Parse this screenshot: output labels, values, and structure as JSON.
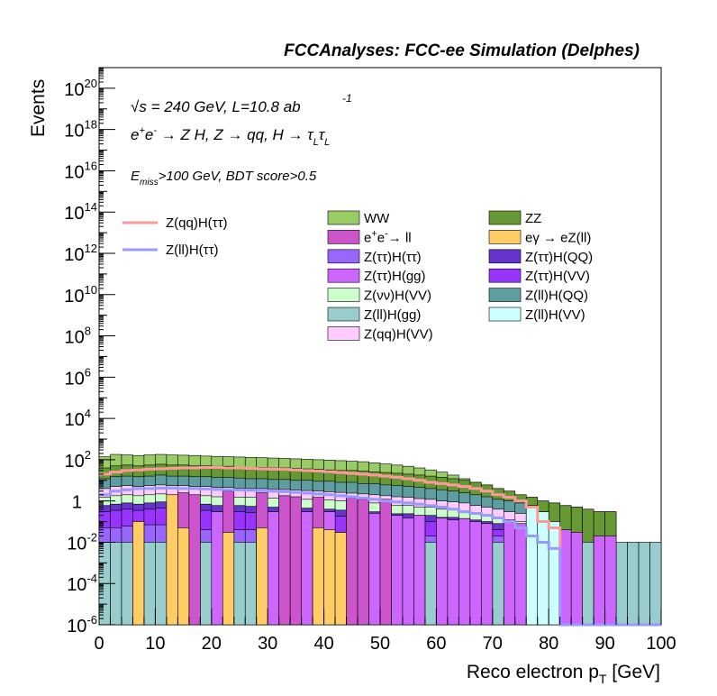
{
  "header": {
    "title": "FCCAnalyses: FCC-ee Simulation (Delphes)"
  },
  "annotations": {
    "line1_sqrt": "s",
    "line1_rest": " = 240 GeV, L=10.8 ab",
    "line1_sup": "-1",
    "line2": "e⁺e⁻ → Z H, Z → qq, H → τ_L τ_L",
    "line2_parts": {
      "a": "e",
      "a_sup": "+",
      "b": "e",
      "b_sup": "-",
      "c": " → Z H, Z  → qq, H  → τ",
      "c_sub": "L",
      "d": "τ",
      "d_sub": "L"
    },
    "line3_E": "E",
    "line3_sub": "miss",
    "line3_rest": ">100 GeV, BDT score>0.5"
  },
  "chart_data": {
    "type": "histogram",
    "title": "FCCAnalyses: FCC-ee Simulation (Delphes)",
    "xlabel_main": "Reco electron p",
    "xlabel_sub": "T",
    "xlabel_unit": " [GeV]",
    "ylabel": "Events",
    "xlim": [
      0,
      100
    ],
    "ylim": [
      1e-06,
      1e+21
    ],
    "yscale": "log",
    "bin_width": 2,
    "x_ticks": [
      "0",
      "10",
      "20",
      "30",
      "40",
      "50",
      "60",
      "70",
      "80",
      "90",
      "100"
    ],
    "y_ticks": [
      {
        "base": "10",
        "exp": "-6"
      },
      {
        "base": "10",
        "exp": "-4"
      },
      {
        "base": "10",
        "exp": "-2"
      },
      {
        "base": "1",
        "exp": ""
      },
      {
        "base": "10",
        "exp": "2"
      },
      {
        "base": "10",
        "exp": "4"
      },
      {
        "base": "10",
        "exp": "6"
      },
      {
        "base": "10",
        "exp": "8"
      },
      {
        "base": "10",
        "exp": "10"
      },
      {
        "base": "10",
        "exp": "12"
      },
      {
        "base": "10",
        "exp": "14"
      },
      {
        "base": "10",
        "exp": "16"
      },
      {
        "base": "10",
        "exp": "18"
      },
      {
        "base": "10",
        "exp": "20"
      }
    ],
    "stack_layers": [
      {
        "name": "Z(ll)H(gg)",
        "color": "#99cccc",
        "top": [
          0.01,
          0.01,
          0.01,
          0.01,
          0.01,
          0.01,
          0.01,
          0.01,
          0.01,
          0.01,
          0.01,
          0.01,
          0.01,
          0.01,
          0.01,
          0.01,
          0.01,
          0.01,
          0.01,
          0.01,
          0.01,
          0.01,
          0.01,
          0.01,
          0.01,
          0.01,
          0.01,
          0.01,
          0.01,
          0.01,
          0.01,
          0.01,
          0.01,
          0.01,
          0.01,
          0.01,
          0.01,
          0.01,
          0.01,
          0.01,
          0.01,
          0.01,
          0.01,
          0.01,
          0.01,
          0.01,
          0.01,
          0.01,
          0.01,
          0.01
        ]
      },
      {
        "name": "Z(ττ)H(ττ)",
        "color": "#9966ff",
        "top": [
          0.05,
          0.05,
          0.06,
          0.06,
          0.07,
          0.07,
          0.05,
          0.06,
          0.05,
          0.04,
          0.05,
          0.05,
          0.04,
          0.04,
          0.05,
          0.04,
          0.04,
          0.03,
          0.04,
          0.04,
          0.03,
          0.03,
          0.03,
          0.03,
          0.03,
          0.03,
          0.03,
          0.02,
          0.03,
          0.02,
          0.02,
          0.02,
          0.02,
          0.02,
          0.02,
          0.02,
          0.02,
          0.02,
          0.02,
          0.01,
          0.01,
          0.01,
          0.01,
          0,
          0,
          0,
          0,
          0,
          0,
          0
        ]
      },
      {
        "name": "Z(ττ)H(VV)",
        "color": "#9933ff",
        "top": [
          0.3,
          0.35,
          0.4,
          0.35,
          0.4,
          0.45,
          0.4,
          0.4,
          0.35,
          0.35,
          0.3,
          0.3,
          0.3,
          0.28,
          0.3,
          0.25,
          0.25,
          0.22,
          0.22,
          0.2,
          0.2,
          0.18,
          0.18,
          0.15,
          0.15,
          0.14,
          0.12,
          0.12,
          0.1,
          0.1,
          0.08,
          0.08,
          0.07,
          0.06,
          0.05,
          0.04,
          0.04,
          0.03,
          0.03,
          0.02,
          0,
          0,
          0,
          0,
          0,
          0,
          0,
          0,
          0,
          0
        ]
      },
      {
        "name": "Z(ττ)H(QQ)",
        "color": "#6633cc",
        "top": [
          0.6,
          0.7,
          0.8,
          0.7,
          0.8,
          0.9,
          0.8,
          0.8,
          0.7,
          0.7,
          0.6,
          0.6,
          0.6,
          0.55,
          0.6,
          0.5,
          0.5,
          0.45,
          0.45,
          0.4,
          0.4,
          0.36,
          0.36,
          0.3,
          0.3,
          0.28,
          0.24,
          0.24,
          0.2,
          0.2,
          0.16,
          0.16,
          0.14,
          0.12,
          0.1,
          0.08,
          0.08,
          0.06,
          0.05,
          0.03,
          0,
          0,
          0,
          0,
          0,
          0,
          0,
          0,
          0,
          0
        ]
      },
      {
        "name": "Z(νν)H(VV)",
        "color": "#ccffcc",
        "top": [
          1.5,
          1.8,
          2,
          1.8,
          2,
          2.2,
          2,
          2,
          1.8,
          1.8,
          1.6,
          1.6,
          1.5,
          1.5,
          1.5,
          1.4,
          1.3,
          1.2,
          1.2,
          1.1,
          1.1,
          1,
          0.9,
          0.8,
          0.8,
          0.7,
          0.6,
          0.6,
          0.5,
          0.5,
          0.4,
          0.4,
          0.3,
          0.25,
          0.2,
          0.15,
          0.12,
          0.1,
          0.08,
          0.05,
          0,
          0,
          0,
          0,
          0,
          0,
          0,
          0,
          0,
          0
        ]
      },
      {
        "name": "Z(qq)H(VV)",
        "color": "#ffccff",
        "top": [
          4,
          5,
          5.5,
          5,
          5.5,
          6,
          5.5,
          5.5,
          5,
          5,
          4.5,
          4.5,
          4.2,
          4,
          4,
          3.8,
          3.6,
          3.4,
          3.2,
          3,
          2.8,
          2.6,
          2.4,
          2.2,
          2,
          1.8,
          1.6,
          1.5,
          1.3,
          1.2,
          1,
          0.9,
          0.8,
          0.6,
          0.5,
          0.4,
          0.3,
          0.25,
          0.2,
          0.1,
          0,
          0,
          0,
          0,
          0,
          0,
          0,
          0,
          0,
          0
        ]
      },
      {
        "name": "Z(ll)H(QQ)",
        "color": "#5f9ea0",
        "top": [
          12,
          15,
          16,
          15,
          16,
          18,
          16,
          16,
          15,
          15,
          14,
          14,
          13,
          12,
          12,
          11,
          11,
          10,
          10,
          9,
          9,
          8,
          8,
          7,
          7,
          6,
          5.5,
          5,
          4.5,
          4,
          3.5,
          3,
          2.5,
          2,
          1.6,
          1.2,
          1,
          0.8,
          0.6,
          0.3,
          0,
          0,
          0,
          0,
          0,
          0,
          0,
          0,
          0,
          0
        ]
      },
      {
        "name": "ZZ",
        "color": "#669933",
        "top": [
          40,
          50,
          55,
          50,
          55,
          60,
          55,
          55,
          50,
          50,
          48,
          48,
          45,
          42,
          42,
          40,
          40,
          38,
          36,
          34,
          32,
          30,
          30,
          28,
          26,
          24,
          22,
          20,
          18,
          16,
          14,
          12,
          10,
          8,
          6,
          4,
          3,
          2,
          1.5,
          1,
          0.8,
          0.6,
          0.5,
          0.4,
          0.3,
          0.3,
          0,
          0,
          0,
          0
        ]
      },
      {
        "name": "WW",
        "color": "#99cc66",
        "top": [
          140,
          180,
          170,
          160,
          170,
          180,
          170,
          165,
          160,
          150,
          145,
          140,
          135,
          130,
          125,
          120,
          115,
          110,
          105,
          100,
          95,
          90,
          85,
          80,
          70,
          62,
          55,
          48,
          40,
          32,
          25,
          18,
          12,
          8,
          6,
          4,
          3,
          2,
          1.5,
          1,
          0.8,
          0.6,
          0.5,
          0.4,
          0.3,
          0.3,
          0,
          0,
          0,
          0
        ]
      }
    ],
    "sparse_fills": [
      {
        "name": "Z(ττ)H(gg)",
        "color": "#cc66ff",
        "bins": [
          6,
          7,
          10,
          14,
          15,
          17,
          18,
          20,
          22,
          23,
          24,
          26,
          27,
          28,
          30,
          31,
          32,
          33,
          34,
          36,
          37,
          38,
          39,
          40,
          41,
          42,
          44,
          45
        ],
        "top": [
          0.3,
          0.25,
          0.3,
          0.35,
          0.3,
          0.25,
          0.3,
          0.3,
          0.25,
          0.2,
          0.25,
          0.2,
          0.15,
          0.2,
          0.15,
          0.12,
          0.14,
          0.1,
          0.08,
          0.1,
          0.08,
          0.06,
          0.05,
          0.05,
          0.04,
          0.03,
          0.02,
          0.02
        ]
      },
      {
        "name": "e⁺e⁻→ ll",
        "color": "#cc55cc",
        "bins": [
          7,
          8,
          11,
          14,
          16,
          17,
          19,
          22,
          23,
          25
        ],
        "top": [
          2.5,
          2,
          3,
          2.5,
          1.8,
          1.6,
          1.5,
          1.4,
          1.2,
          1.2
        ]
      },
      {
        "name": "eγ → eZ(ll)",
        "color": "#ffcc66",
        "bins": [
          3,
          6,
          7,
          11,
          14,
          19,
          20,
          21,
          39
        ],
        "top": [
          0.1,
          2,
          0.05,
          0.03,
          0.05,
          0.05,
          0.04,
          0.03,
          0.05
        ]
      },
      {
        "name": "Z(ll)H(VV)",
        "color": "#ccffff",
        "bins": [
          38,
          39,
          40
        ],
        "top": [
          0.5,
          0.3,
          0.1
        ]
      }
    ],
    "overlay_lines": [
      {
        "name": "Z(qq)H(ττ)",
        "color": "#ff9999",
        "values": [
          20,
          25,
          30,
          32,
          35,
          36,
          38,
          40,
          40,
          42,
          42,
          40,
          40,
          38,
          36,
          35,
          34,
          32,
          30,
          28,
          26,
          24,
          22,
          20,
          18,
          16,
          14,
          12,
          10,
          8,
          7,
          6,
          5,
          4,
          3,
          2,
          1.5,
          1,
          0.5,
          0.1,
          0.05,
          0,
          0,
          0,
          0,
          0,
          0,
          0,
          0,
          0
        ]
      },
      {
        "name": "Z(ll)H(ττ)",
        "color": "#9999ff",
        "values": [
          2,
          3,
          3.5,
          4,
          4,
          4.2,
          4.2,
          4,
          4,
          3.8,
          3.6,
          3.5,
          3.4,
          3.3,
          3.2,
          3,
          2.8,
          2.6,
          2.4,
          2.2,
          2,
          1.8,
          1.6,
          1.4,
          1.2,
          1,
          0.9,
          0.8,
          0.7,
          0.6,
          0.5,
          0.4,
          0.3,
          0.25,
          0.2,
          0.15,
          0.1,
          0.05,
          0.02,
          0.01,
          0.005,
          0,
          0,
          0,
          0,
          0,
          0,
          0,
          0,
          0
        ]
      }
    ],
    "legend_lines": [
      {
        "label": "Z(qq)H(ττ)",
        "color": "#ff9999"
      },
      {
        "label": "Z(ll)H(ττ)",
        "color": "#9999ff"
      }
    ],
    "legend_boxes_col1": [
      {
        "label": "WW",
        "color": "#99cc66"
      },
      {
        "label_base": "e",
        "label_sup1": "+",
        "label_mid": "e",
        "label_sup2": "-",
        "label_end": "→ ll",
        "label": "e⁺e⁻→ ll",
        "color": "#cc55cc"
      },
      {
        "label": "Z(ττ)H(ττ)",
        "color": "#9966ff"
      },
      {
        "label": "Z(ττ)H(gg)",
        "color": "#cc66ff"
      },
      {
        "label": "Z(νν)H(VV)",
        "color": "#ccffcc"
      },
      {
        "label": "Z(ll)H(gg)",
        "color": "#99cccc"
      },
      {
        "label": "Z(qq)H(VV)",
        "color": "#ffccff"
      }
    ],
    "legend_boxes_col2": [
      {
        "label": "ZZ",
        "color": "#669933"
      },
      {
        "label": "eγ → eZ(ll)",
        "color": "#ffcc66"
      },
      {
        "label": "Z(ττ)H(QQ)",
        "color": "#6633cc"
      },
      {
        "label": "Z(ττ)H(VV)",
        "color": "#9933ff"
      },
      {
        "label": "Z(ll)H(QQ)",
        "color": "#5f9ea0"
      },
      {
        "label": "Z(ll)H(VV)",
        "color": "#ccffff"
      }
    ]
  }
}
